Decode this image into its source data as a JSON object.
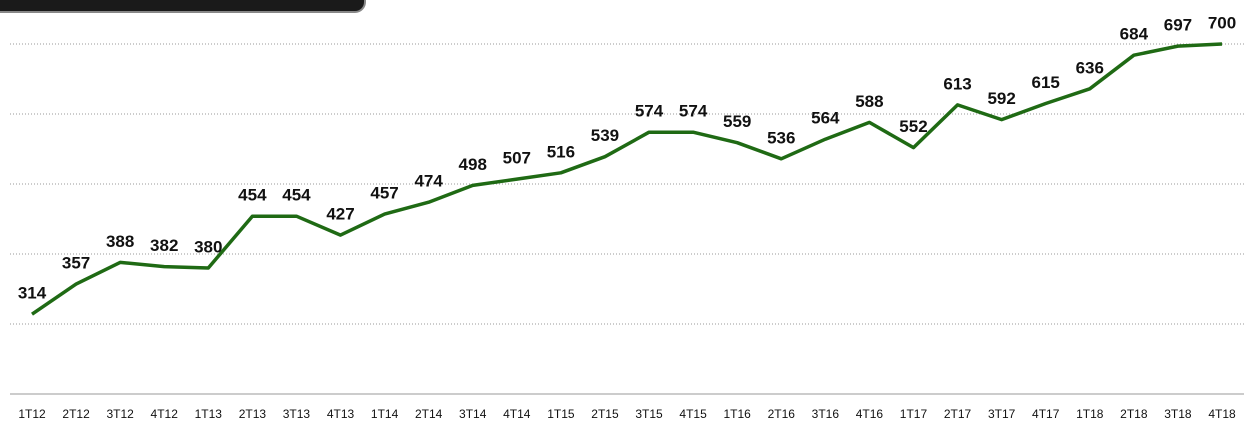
{
  "chart_data": {
    "type": "line",
    "categories": [
      "1T12",
      "2T12",
      "3T12",
      "4T12",
      "1T13",
      "2T13",
      "3T13",
      "4T13",
      "1T14",
      "2T14",
      "3T14",
      "4T14",
      "1T15",
      "2T15",
      "3T15",
      "4T15",
      "1T16",
      "2T16",
      "3T16",
      "4T16",
      "1T17",
      "2T17",
      "3T17",
      "4T17",
      "1T18",
      "2T18",
      "3T18",
      "4T18"
    ],
    "series": [
      {
        "color": "#1f6a14",
        "values": [
          314,
          357,
          388,
          382,
          380,
          454,
          454,
          427,
          457,
          474,
          498,
          507,
          516,
          539,
          574,
          574,
          559,
          536,
          564,
          588,
          552,
          613,
          592,
          615,
          636,
          684,
          697,
          700
        ]
      }
    ],
    "ylim": [
      200,
      700
    ],
    "yticks": [
      300,
      400,
      500,
      600,
      700
    ],
    "grid": true
  }
}
